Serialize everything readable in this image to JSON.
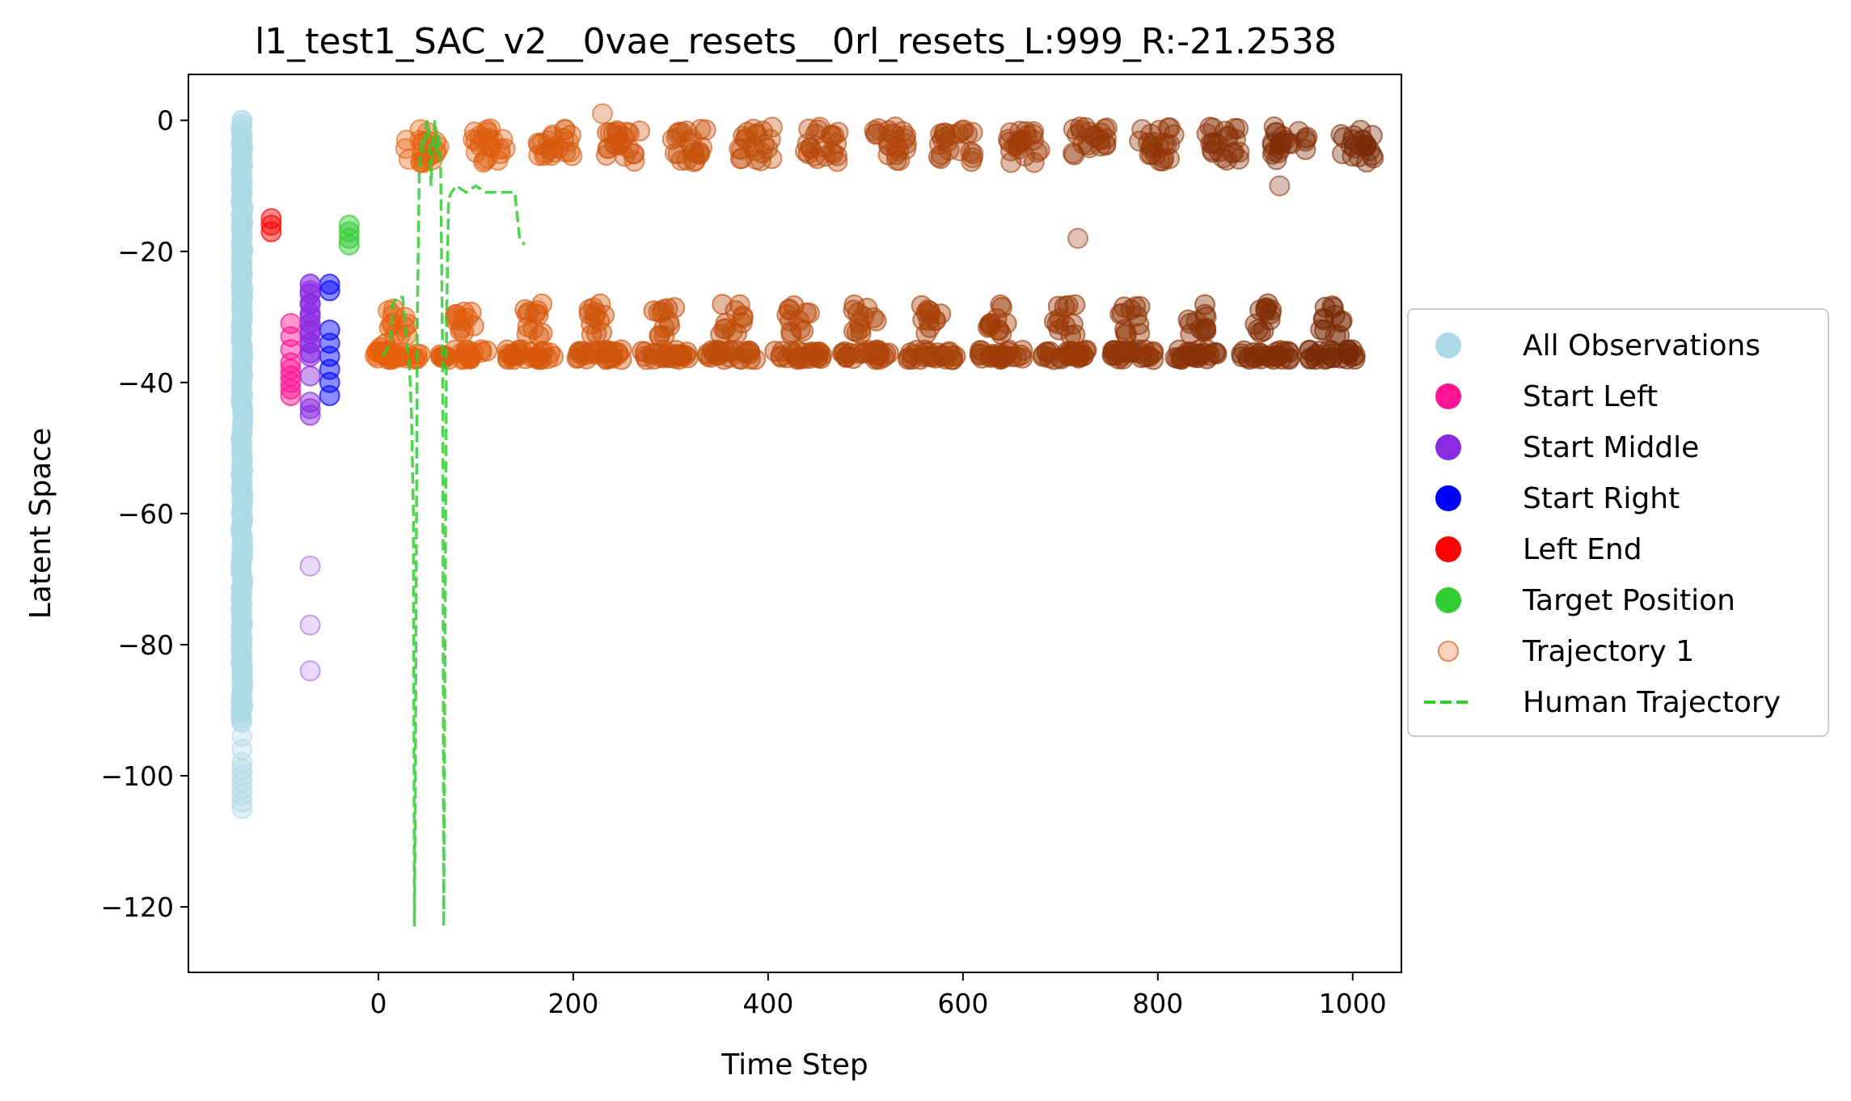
{
  "chart_data": {
    "type": "scatter",
    "title": "l1_test1_SAC_v2__0vae_resets__0rl_resets_L:999_R:-21.2538",
    "xlabel": "Time Step",
    "ylabel": "Latent Space",
    "xlim": [
      -195,
      1050
    ],
    "ylim": [
      -130,
      7
    ],
    "x_ticks": [
      0,
      200,
      400,
      600,
      800,
      1000
    ],
    "y_ticks": [
      0,
      -20,
      -40,
      -60,
      -80,
      -100,
      -120
    ],
    "x_tick_labels": [
      "0",
      "200",
      "400",
      "600",
      "800",
      "1000"
    ],
    "y_tick_labels": [
      "0",
      "−20",
      "−40",
      "−60",
      "−80",
      "−100",
      "−120"
    ],
    "grid": false,
    "legend_position": "right-outside",
    "legend": [
      {
        "label": "All Observations",
        "color": "#add8e6",
        "marker": "circle"
      },
      {
        "label": "Start Left",
        "color": "#ff1493",
        "marker": "circle"
      },
      {
        "label": "Start Middle",
        "color": "#8a2be2",
        "marker": "circle"
      },
      {
        "label": "Start Right",
        "color": "#0000ff",
        "marker": "circle"
      },
      {
        "label": "Left End",
        "color": "#ff0000",
        "marker": "circle"
      },
      {
        "label": "Target Position",
        "color": "#32cd32",
        "marker": "circle"
      },
      {
        "label": "Trajectory 1",
        "color": "#f4a582",
        "marker": "circle-faded"
      },
      {
        "label": "Human Trajectory",
        "color": "#32cd32",
        "marker": "dashed-line"
      }
    ],
    "series": [
      {
        "name": "All Observations",
        "color": "#add8e6",
        "x_value": -140,
        "y_range": [
          -105,
          0
        ]
      },
      {
        "name": "Start Left",
        "color": "#ff1493",
        "x_value": -90,
        "y_values": [
          -31,
          -33,
          -35,
          -37,
          -38,
          -39,
          -40,
          -41,
          -42
        ]
      },
      {
        "name": "Start Middle",
        "color": "#8a2be2",
        "x_value": -70,
        "y_values": [
          -26,
          -28,
          -30,
          -32,
          -34,
          -36,
          -39,
          -43,
          -44,
          -45,
          -68,
          -77,
          -84
        ]
      },
      {
        "name": "Start Right",
        "color": "#0000ff",
        "x_value": -50,
        "y_values": [
          -25,
          -26,
          -32,
          -34,
          -36,
          -38,
          -40,
          -42
        ]
      },
      {
        "name": "Left End",
        "color": "#ff0000",
        "x_value": -110,
        "y_values": [
          -15,
          -16,
          -17
        ]
      },
      {
        "name": "Target Position",
        "color": "#32cd32",
        "x_value": -30,
        "y_values": [
          -16,
          -17,
          -18,
          -19
        ]
      },
      {
        "name": "Trajectory 1",
        "color_start": "#e6600c",
        "color_end": "#7a2a06",
        "upper_band": [
          -7,
          0
        ],
        "lower_band": [
          -37,
          -25
        ],
        "outliers": [
          [
            230,
            1
          ],
          [
            718,
            -18
          ],
          [
            925,
            -10
          ]
        ],
        "x_range": [
          0,
          999
        ]
      },
      {
        "name": "Human Trajectory",
        "color": "#32cd32",
        "points": [
          [
            5,
            -36
          ],
          [
            12,
            -34
          ],
          [
            15,
            -28
          ],
          [
            20,
            -27
          ],
          [
            25,
            -27
          ],
          [
            28,
            -32
          ],
          [
            32,
            -38
          ],
          [
            34,
            -45
          ],
          [
            36,
            -60
          ],
          [
            37,
            -123
          ],
          [
            38,
            -100
          ],
          [
            40,
            -30
          ],
          [
            42,
            -8
          ],
          [
            44,
            -3
          ],
          [
            46,
            -5
          ],
          [
            48,
            -2
          ],
          [
            50,
            0
          ],
          [
            52,
            -3
          ],
          [
            54,
            -10
          ],
          [
            56,
            -3
          ],
          [
            58,
            0
          ],
          [
            60,
            -5
          ],
          [
            62,
            -2
          ],
          [
            64,
            -8
          ],
          [
            66,
            -38
          ],
          [
            67,
            -123
          ],
          [
            68,
            -90
          ],
          [
            70,
            -30
          ],
          [
            72,
            -12
          ],
          [
            75,
            -11
          ],
          [
            80,
            -10
          ],
          [
            90,
            -11
          ],
          [
            100,
            -10
          ],
          [
            110,
            -11
          ],
          [
            120,
            -11
          ],
          [
            130,
            -11
          ],
          [
            140,
            -11
          ],
          [
            145,
            -18
          ],
          [
            150,
            -19
          ]
        ]
      }
    ]
  }
}
